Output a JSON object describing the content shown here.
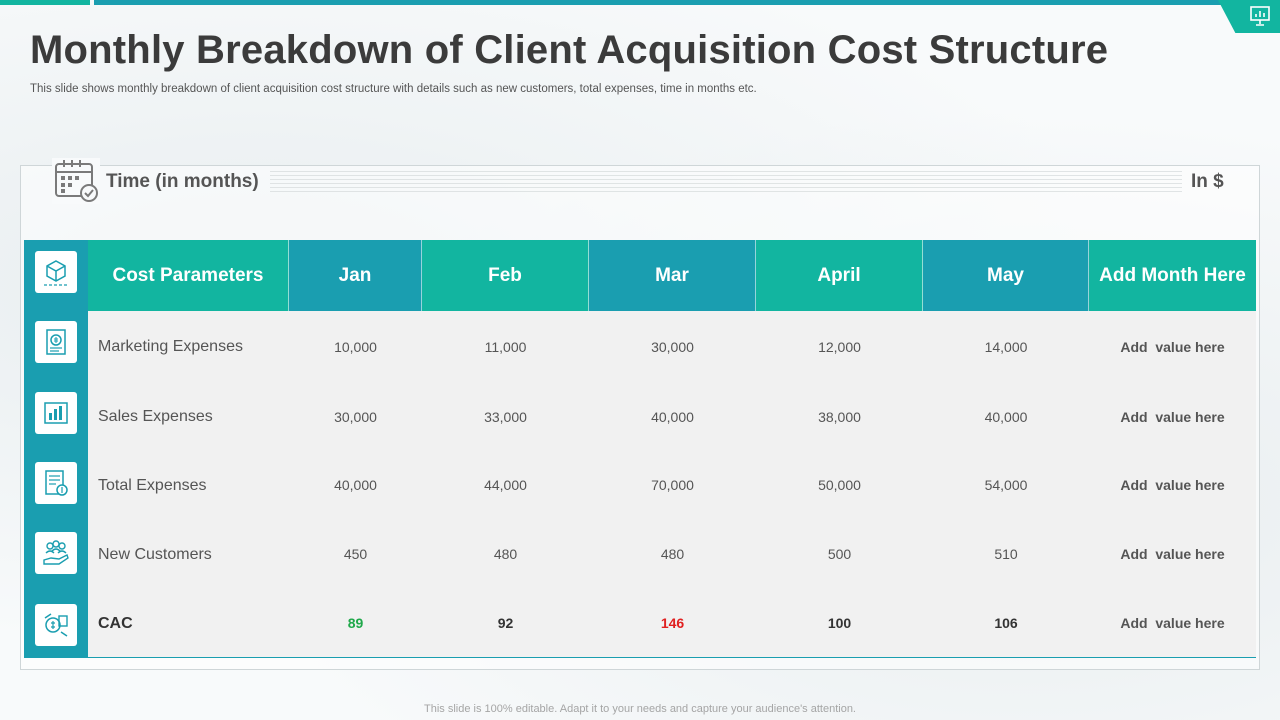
{
  "title": "Monthly Breakdown of Client Acquisition Cost Structure",
  "subtitle": "This slide shows monthly breakdown of client acquisition cost structure with details such as new customers, total expenses, time in months etc.",
  "time_label": "Time (in months)",
  "unit_label": "In $",
  "table": {
    "headers": [
      "Cost Parameters",
      "Jan",
      "Feb",
      "Mar",
      "April",
      "May",
      "Add Month Here"
    ],
    "rows": [
      {
        "label": "Marketing Expenses",
        "values": [
          "10,000",
          "11,000",
          "30,000",
          "12,000",
          "14,000",
          "Add  value here"
        ]
      },
      {
        "label": "Sales Expenses",
        "values": [
          "30,000",
          "33,000",
          "40,000",
          "38,000",
          "40,000",
          "Add  value here"
        ]
      },
      {
        "label": "Total Expenses",
        "values": [
          "40,000",
          "44,000",
          "70,000",
          "50,000",
          "54,000",
          "Add  value here"
        ]
      },
      {
        "label": "New Customers",
        "values": [
          "450",
          "480",
          "480",
          "500",
          "510",
          "Add  value here"
        ]
      },
      {
        "label": "CAC",
        "values": [
          "89",
          "92",
          "146",
          "100",
          "106",
          "Add  value here"
        ]
      }
    ]
  },
  "icons": [
    "cube-icon",
    "marketing-report-icon",
    "sales-chart-icon",
    "invoice-dollar-icon",
    "customers-hand-icon",
    "money-exchange-icon"
  ],
  "colors": {
    "teal": "#12b5a0",
    "blue": "#1a9eb0",
    "cac_low": "#1fa84a",
    "cac_high": "#e02020"
  },
  "footer": "This slide is 100% editable. Adapt it to your needs and capture your audience's attention."
}
